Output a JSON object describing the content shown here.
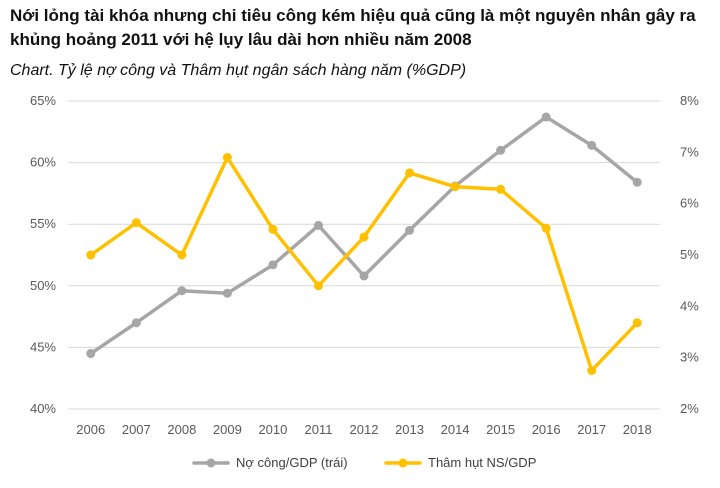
{
  "title": "Nới lỏng tài khóa nhưng chi tiêu công kém hiệu quả cũng là một nguyên nhân gây ra khủng hoảng 2011 với hệ lụy lâu dài hơn nhiều năm 2008",
  "subtitle": "Chart. Tỷ lệ nợ công và Thâm hụt ngân sách hàng năm (%GDP)",
  "colors": {
    "debt": "#a6a6a6",
    "deficit": "#ffc000",
    "grid": "#d9d9d9"
  },
  "chart_data": {
    "type": "line",
    "title": "Chart. Tỷ lệ nợ công và Thâm hụt ngân sách hàng năm (%GDP)",
    "categories": [
      "2006",
      "2007",
      "2008",
      "2009",
      "2010",
      "2011",
      "2012",
      "2013",
      "2014",
      "2015",
      "2016",
      "2017",
      "2018"
    ],
    "y_left": {
      "ylim": [
        40,
        65
      ],
      "ticks": [
        "40%",
        "45%",
        "50%",
        "55%",
        "60%",
        "65%"
      ],
      "tick_values": [
        40,
        45,
        50,
        55,
        60,
        65
      ]
    },
    "y_right": {
      "ylim": [
        2,
        8
      ],
      "ticks": [
        "2%",
        "3%",
        "4%",
        "5%",
        "6%",
        "7%",
        "8%"
      ],
      "tick_values": [
        2,
        3,
        4,
        5,
        6,
        7,
        8
      ]
    },
    "grid": true,
    "legend": "bottom",
    "series": [
      {
        "name": "Nợ công/GDP (trái)",
        "axis": "left",
        "color": "#a6a6a6",
        "values": [
          44.5,
          47.0,
          49.6,
          49.4,
          51.7,
          54.9,
          50.8,
          54.5,
          58.1,
          61.0,
          63.7,
          61.4,
          58.4
        ]
      },
      {
        "name": "Thâm hụt NS/GDP",
        "axis": "right",
        "color": "#ffc000",
        "values": [
          5.0,
          5.63,
          5.0,
          6.9,
          5.5,
          4.4,
          5.35,
          6.6,
          6.33,
          6.28,
          5.52,
          2.75,
          3.68
        ]
      }
    ]
  }
}
